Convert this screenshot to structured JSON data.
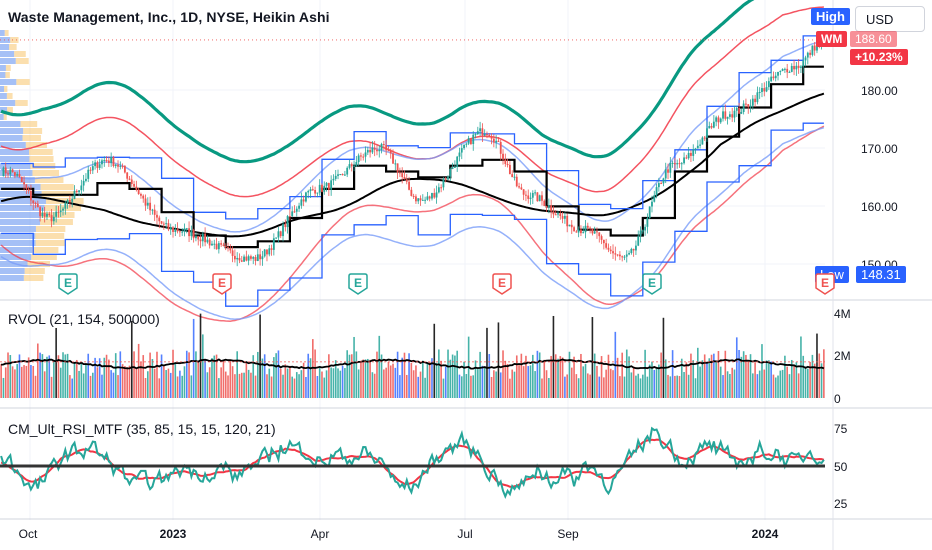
{
  "header": {
    "title": "Waste Management, Inc., 1D, NYSE, Heikin Ashi",
    "high_label": "High",
    "currency": "USD",
    "symbol_tag": "WM",
    "last_price": "188.60",
    "change_pct": "+10.23%",
    "low_label": "Low",
    "low_value": "148.31"
  },
  "colors": {
    "up": "#26a69a",
    "down": "#ef5350",
    "kc_outer": "#089981",
    "kc_mid": "#f23645",
    "kc_inner": "#7b9ef9",
    "vwap": "#000000",
    "steps": "#2962ff",
    "rsi_green": "#26a69a",
    "rsi_red": "#f23645",
    "high_bg": "#2962ff",
    "wm_bg": "#f23645"
  },
  "price_axis": {
    "ticks": [
      "180.00",
      "170.00",
      "160.00",
      "150.00"
    ]
  },
  "time_axis": {
    "ticks": [
      "Oct",
      "2023",
      "Apr",
      "Jul",
      "Sep",
      "2024"
    ]
  },
  "earnings_markers": [
    {
      "letter": "E",
      "type": "up"
    },
    {
      "letter": "E",
      "type": "down"
    },
    {
      "letter": "E",
      "type": "up"
    },
    {
      "letter": "E",
      "type": "down"
    },
    {
      "letter": "E",
      "type": "up"
    },
    {
      "letter": "E",
      "type": "down"
    }
  ],
  "volume_pane": {
    "title": "RVOL (21, 154, 500000)",
    "ticks": [
      "4M",
      "2M",
      "0"
    ]
  },
  "rsi_pane": {
    "title": "CM_Ult_RSI_MTF (35, 85, 15, 15, 120, 21)",
    "ticks": [
      "75",
      "50",
      "25"
    ]
  },
  "chart_data": {
    "type": "candlestick",
    "title": "Waste Management, Inc., 1D, NYSE, Heikin Ashi",
    "x_range": [
      "2022-09-15",
      "2024-02-12"
    ],
    "price_range": [
      146,
      192
    ],
    "key_closes": [
      {
        "date": "2022-09-20",
        "close": 166
      },
      {
        "date": "2022-10-15",
        "close": 158
      },
      {
        "date": "2022-11-20",
        "close": 168
      },
      {
        "date": "2023-01-01",
        "close": 156
      },
      {
        "date": "2023-02-20",
        "close": 151
      },
      {
        "date": "2023-04-01",
        "close": 163
      },
      {
        "date": "2023-05-10",
        "close": 170
      },
      {
        "date": "2023-06-05",
        "close": 161
      },
      {
        "date": "2023-07-15",
        "close": 173
      },
      {
        "date": "2023-08-10",
        "close": 162
      },
      {
        "date": "2023-09-15",
        "close": 156
      },
      {
        "date": "2023-10-10",
        "close": 151
      },
      {
        "date": "2023-11-10",
        "close": 167
      },
      {
        "date": "2023-12-15",
        "close": 176
      },
      {
        "date": "2024-01-25",
        "close": 184
      },
      {
        "date": "2024-02-12",
        "close": 188.6
      }
    ],
    "last_close": 188.6,
    "change_pct": 10.23,
    "low": 148.31,
    "volume_range": [
      0,
      4000000
    ],
    "rsi_range": [
      15,
      85
    ],
    "rsi_baseline": 50
  }
}
